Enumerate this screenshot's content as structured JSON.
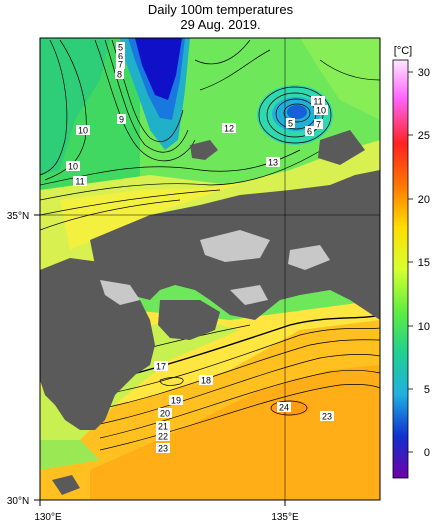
{
  "title": "Daily 100m temperatures",
  "date": "29 Aug. 2019.",
  "axes": {
    "lon_labels": [
      "130°E",
      "135°E"
    ],
    "lat_labels": [
      "35°N",
      "30°N"
    ]
  },
  "colorbar": {
    "unit": "[°C]",
    "ticks": [
      "30",
      "25",
      "20",
      "15",
      "10",
      "5",
      "0"
    ],
    "colors": [
      "#ffd8ff",
      "#ff66ff",
      "#ff2244",
      "#ff7a00",
      "#ffb000",
      "#ffe000",
      "#f7ff40",
      "#c8ff40",
      "#70f060",
      "#30e070",
      "#20d0b0",
      "#20b0e0",
      "#2060e0",
      "#1010c0",
      "#6000a0"
    ]
  },
  "contour_labels": [
    {
      "id": "c5",
      "text": "5"
    },
    {
      "id": "c6a",
      "text": "6"
    },
    {
      "id": "c7a",
      "text": "7"
    },
    {
      "id": "c8a",
      "text": "8"
    },
    {
      "id": "c9",
      "text": "9"
    },
    {
      "id": "c10a",
      "text": "10"
    },
    {
      "id": "c10b",
      "text": "10"
    },
    {
      "id": "c11a",
      "text": "11"
    },
    {
      "id": "c12",
      "text": "12"
    },
    {
      "id": "c13",
      "text": "13"
    },
    {
      "id": "c11b",
      "text": "11"
    },
    {
      "id": "c10c",
      "text": "10"
    },
    {
      "id": "c5b",
      "text": "5"
    },
    {
      "id": "c6b",
      "text": "6"
    },
    {
      "id": "c7b",
      "text": "7"
    },
    {
      "id": "c17",
      "text": "17"
    },
    {
      "id": "c18",
      "text": "18"
    },
    {
      "id": "c19",
      "text": "19"
    },
    {
      "id": "c20",
      "text": "20"
    },
    {
      "id": "c21",
      "text": "21"
    },
    {
      "id": "c22",
      "text": "22"
    },
    {
      "id": "c23a",
      "text": "23"
    },
    {
      "id": "c24",
      "text": "24"
    },
    {
      "id": "c23b",
      "text": "23"
    }
  ]
}
